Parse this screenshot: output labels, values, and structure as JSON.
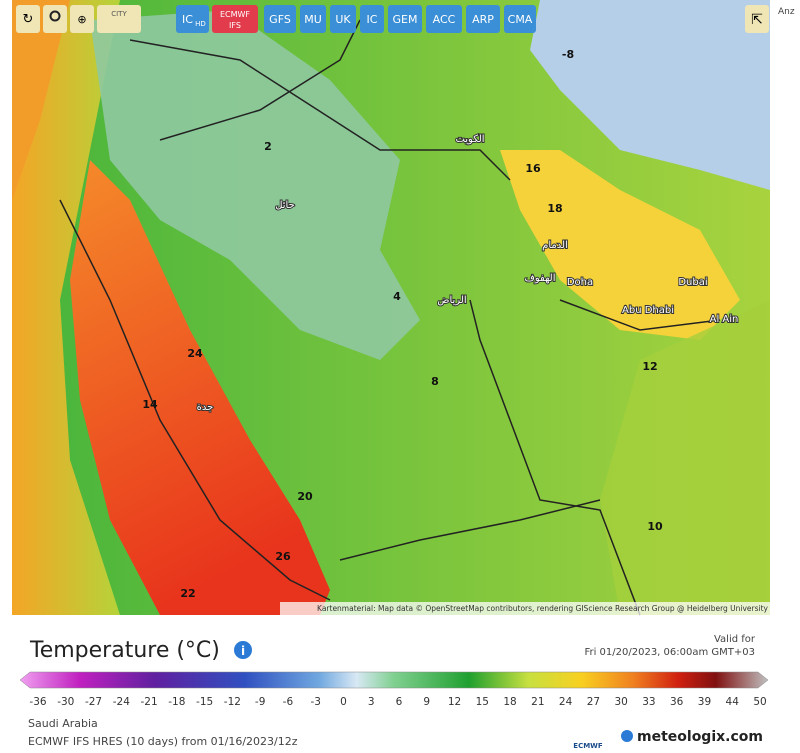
{
  "toolbar": {
    "city": "CITY",
    "models": [
      {
        "text": "IC",
        "sub": "HD"
      },
      {
        "text": "ECMWF",
        "sub": "IFS"
      },
      {
        "text": "GFS"
      },
      {
        "text": "MU"
      },
      {
        "text": "UK"
      },
      {
        "text": "IC"
      },
      {
        "text": "GEM"
      },
      {
        "text": "ACC"
      },
      {
        "text": "ARP"
      },
      {
        "text": "CMA"
      }
    ]
  },
  "side_text": "Anz",
  "map": {
    "labels": [
      "Doha",
      "Dubai",
      "Abu Dhabi",
      "Al Ain",
      "الرياض",
      "جدة",
      "الكويت",
      "الدمام",
      "حائل",
      "الهفوف",
      "-8",
      "26",
      "20",
      "18",
      "16",
      "14",
      "12",
      "10",
      "8",
      "4",
      "2",
      "22",
      "24"
    ],
    "attribution": "Kartenmaterial: Map data © OpenStreetMap contributors, rendering GIScience Research Group @ Heidelberg University"
  },
  "legend": {
    "title": "Temperature (°C)",
    "valid_label": "Valid for",
    "valid_time": "Fri 01/20/2023, 06:00am GMT+03",
    "scale": [
      -36,
      -30,
      -27,
      -24,
      -21,
      -18,
      -15,
      -12,
      -9,
      -6,
      -3,
      0,
      3,
      6,
      9,
      12,
      15,
      18,
      21,
      24,
      27,
      30,
      33,
      36,
      39,
      44,
      50
    ],
    "region": "Saudi Arabia",
    "model_run": "ECMWF IFS HRES (10 days) from 01/16/2023/12z",
    "ecmwf": "ECMWF",
    "brand": "meteologix.com"
  }
}
